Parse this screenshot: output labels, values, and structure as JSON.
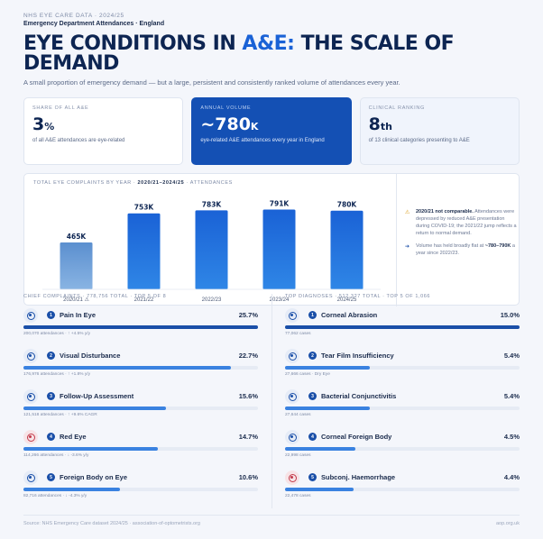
{
  "header": {
    "eyebrow": "NHS EYE CARE DATA · 2024/25",
    "eyebrow2": "Emergency Department Attendances · England",
    "title_part1": "EYE CONDITIONS IN ",
    "title_accent": "A&E:",
    "title_part2": " THE SCALE OF DEMAND",
    "subtitle": "A small proportion of emergency demand — but a large, persistent and consistently ranked volume of attendances every year."
  },
  "kpis": [
    {
      "label": "SHARE OF ALL A&E",
      "value": "3",
      "unit": "%",
      "desc": "of all A&E attendances are eye-related"
    },
    {
      "label": "ANNUAL VOLUME",
      "value": "~780",
      "unit": "K",
      "desc": "eye-related A&E attendances every year in England"
    },
    {
      "label": "CLINICAL RANKING",
      "value": "8",
      "unit": "th",
      "desc": "of 13 clinical categories presenting to A&E"
    }
  ],
  "chart_head": {
    "part1": "TOTAL EYE COMPLAINTS BY YEAR · ",
    "bold": "2020/21–2024/25",
    "part2": " · ATTENDANCES"
  },
  "chart_data": {
    "type": "bar",
    "categories": [
      "2020/21 ⚠",
      "2021/22",
      "2022/23",
      "2023/24",
      "2024/25"
    ],
    "values": [
      465,
      753,
      783,
      791,
      780
    ],
    "data_labels": [
      "465K",
      "753K",
      "783K",
      "791K",
      "780K"
    ],
    "ylim": [
      0,
      840
    ],
    "colors": {
      "first": "#6f9fd4",
      "rest": "#1f6fd6"
    }
  },
  "notes": [
    {
      "icon": "⚠",
      "bold": "2020/21 not comparable.",
      "text": " Attendances were depressed by reduced A&E presentation during COVID-19; the 2021/22 jump reflects a return to normal demand."
    },
    {
      "icon": "➔",
      "text1": "Volume has held broadly flat at ",
      "bold": "~780–790K",
      "text2": " a year since 2022/23."
    }
  ],
  "complaints": {
    "head": "CHIEF COMPLAINTS · 778,756 TOTAL · TOP 5 OF 8",
    "items": [
      {
        "n": "1",
        "label": "Pain In Eye",
        "pct": "25.7%",
        "share": 25.7,
        "meta": "200,070 attendances · ↑ +4.5% y/y",
        "red": false
      },
      {
        "n": "2",
        "label": "Visual Disturbance",
        "pct": "22.7%",
        "share": 22.7,
        "meta": "176,976 attendances · ↑ +1.8% y/y",
        "red": false
      },
      {
        "n": "3",
        "label": "Follow-Up Assessment",
        "pct": "15.6%",
        "share": 15.6,
        "meta": "121,518 attendances · ↑ +9.6% CAGR",
        "red": false
      },
      {
        "n": "4",
        "label": "Red Eye",
        "pct": "14.7%",
        "share": 14.7,
        "meta": "114,266 attendances · ↓ -3.6% y/y",
        "red": true
      },
      {
        "n": "5",
        "label": "Foreign Body on Eye",
        "pct": "10.6%",
        "share": 10.6,
        "meta": "82,716 attendances · ↓ -4.3% y/y",
        "red": false
      }
    ]
  },
  "diagnoses": {
    "head": "TOP DIAGNOSES · 512,327 TOTAL · TOP 5 OF 1,066",
    "items": [
      {
        "n": "1",
        "label": "Corneal Abrasion",
        "pct": "15.0%",
        "share": 15.0,
        "meta": "77,062 cases",
        "red": false
      },
      {
        "n": "2",
        "label": "Tear Film Insufficiency",
        "pct": "5.4%",
        "share": 5.4,
        "meta": "27,666 cases · Dry Eye",
        "red": false
      },
      {
        "n": "3",
        "label": "Bacterial Conjunctivitis",
        "pct": "5.4%",
        "share": 5.4,
        "meta": "27,644 cases",
        "red": false
      },
      {
        "n": "4",
        "label": "Corneal Foreign Body",
        "pct": "4.5%",
        "share": 4.5,
        "meta": "22,998 cases",
        "red": false
      },
      {
        "n": "5",
        "label": "Subconj. Haemorrhage",
        "pct": "4.4%",
        "share": 4.4,
        "meta": "22,478 cases",
        "red": true
      }
    ]
  },
  "footer": {
    "source": "Source: NHS Emergency Care dataset 2024/25 · association-of-optometrists.org",
    "site": "aop.org.uk"
  }
}
